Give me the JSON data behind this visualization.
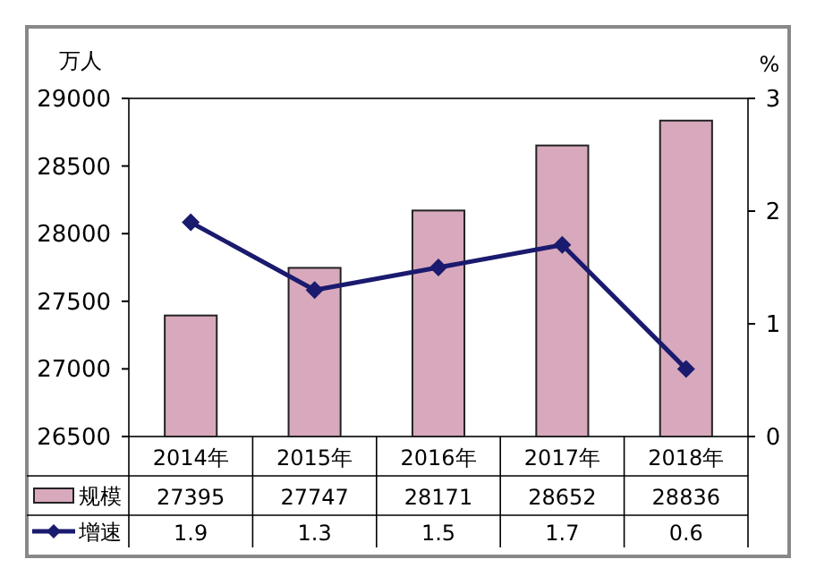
{
  "chart_data": {
    "type": "bar",
    "ylabel": "万人",
    "y2label": "%",
    "categories": [
      "2014年",
      "2015年",
      "2016年",
      "2017年",
      "2018年"
    ],
    "series": [
      {
        "name": "规模",
        "color": "#d8a8bc",
        "values": [
          27395,
          27747,
          28171,
          28652,
          28836
        ]
      },
      {
        "name": "增速",
        "type": "line",
        "axis": "y2",
        "color": "#1a1a6e",
        "values": [
          1.9,
          1.3,
          1.5,
          1.7,
          0.6
        ]
      }
    ],
    "ylim": [
      26500,
      29000
    ],
    "yticks": [
      26500,
      27000,
      27500,
      28000,
      28500,
      29000
    ],
    "y2lim": [
      0,
      3
    ],
    "y2ticks": [
      0,
      1,
      2,
      3
    ],
    "data_labels": true,
    "legend": "bottom",
    "marker": "diamond",
    "line_style": "solid"
  }
}
